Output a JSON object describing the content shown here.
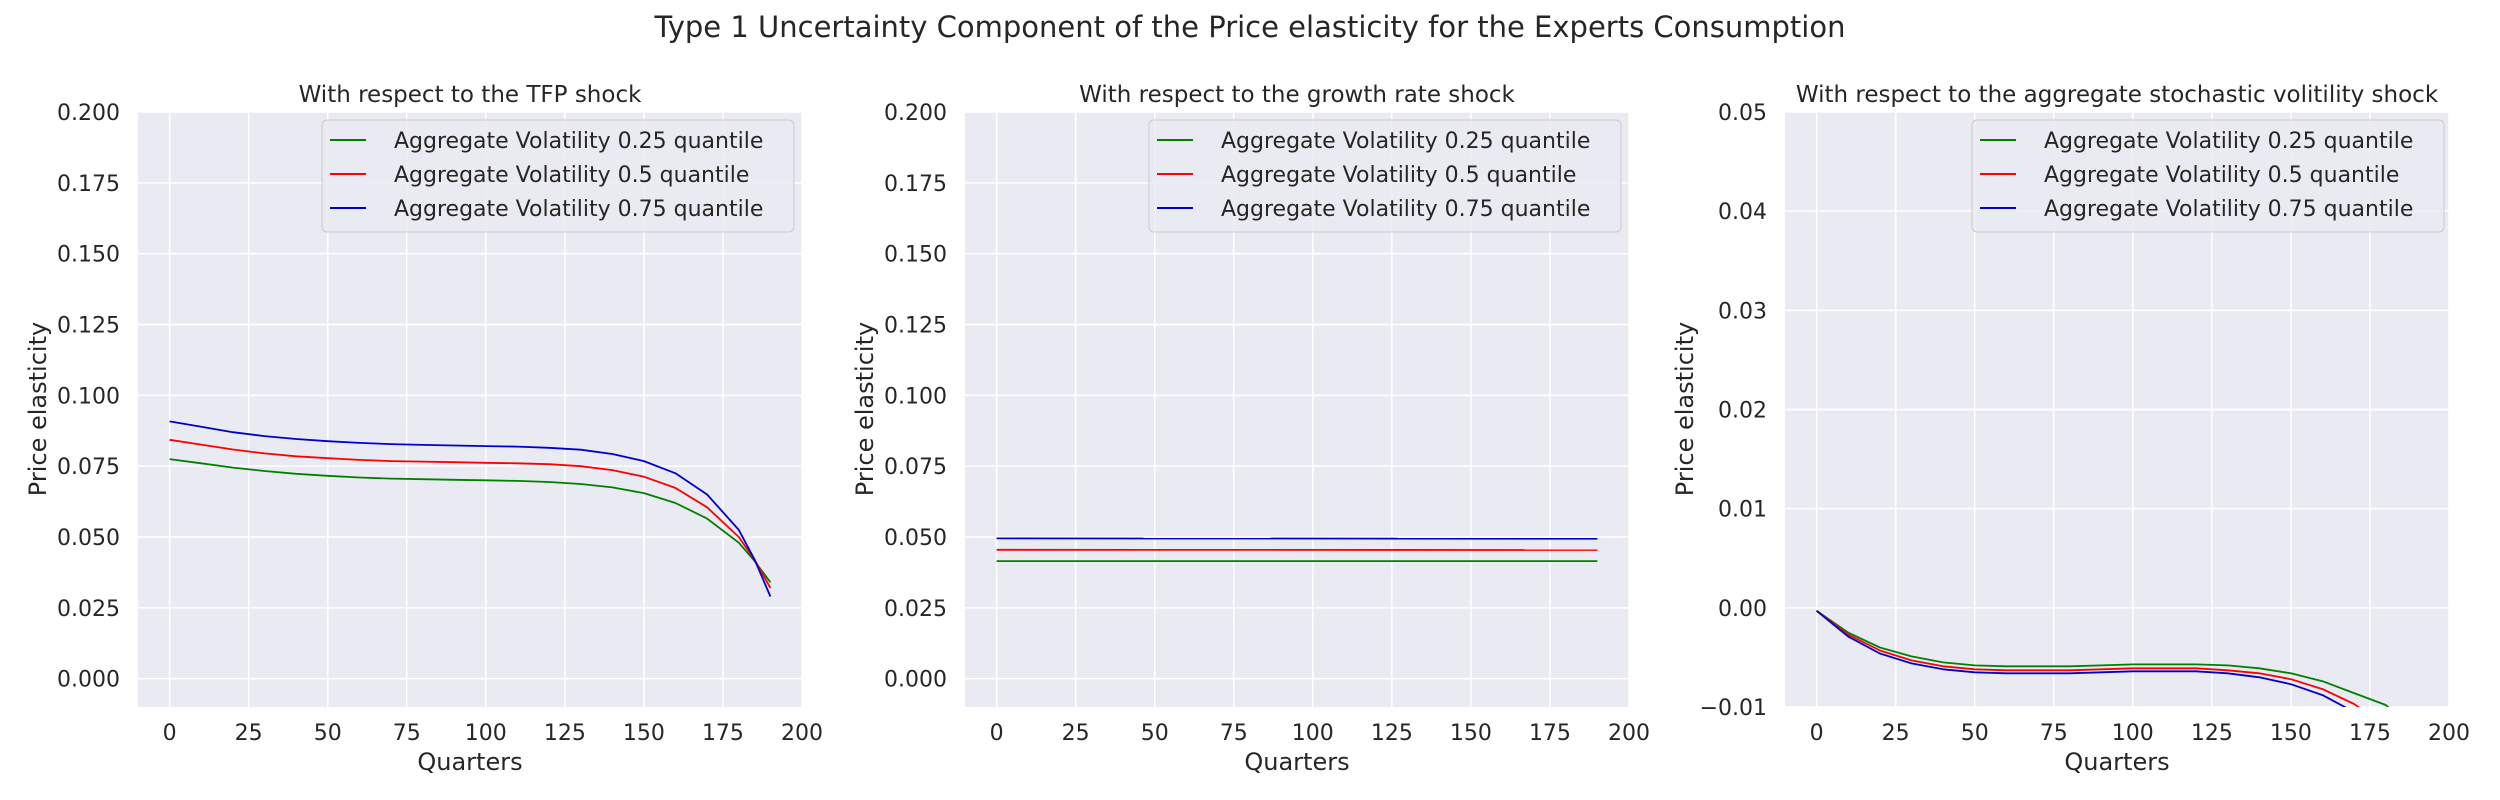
{
  "figure": {
    "title": "Type 1 Uncertainty Component of the Price elasticity for the Experts Consumption"
  },
  "chart_data": [
    {
      "type": "line",
      "title": "With respect to the TFP shock",
      "xlabel": "Quarters",
      "ylabel": "Price elasticity",
      "xlim": [
        -10,
        200
      ],
      "ylim": [
        -0.01,
        0.2
      ],
      "xticks": [
        0,
        25,
        50,
        75,
        100,
        125,
        150,
        175,
        200
      ],
      "xtick_labels": [
        "0",
        "25",
        "50",
        "75",
        "100",
        "125",
        "150",
        "175",
        "200"
      ],
      "yticks": [
        0,
        0.025,
        0.05,
        0.075,
        0.1,
        0.125,
        0.15,
        0.175,
        0.2
      ],
      "ytick_labels": [
        "0.000",
        "0.025",
        "0.050",
        "0.075",
        "0.100",
        "0.125",
        "0.150",
        "0.175",
        "0.200"
      ],
      "grid": true,
      "legend_position": "top-right",
      "x": [
        0,
        10,
        20,
        30,
        40,
        50,
        60,
        70,
        80,
        90,
        100,
        110,
        120,
        130,
        140,
        150,
        160,
        170,
        180,
        185,
        190
      ],
      "series": [
        {
          "name": "Aggregate Volatility 0.25 quantile",
          "color": "#008000",
          "values": [
            0.0775,
            0.076,
            0.0745,
            0.0733,
            0.0723,
            0.0716,
            0.071,
            0.0706,
            0.0704,
            0.0702,
            0.07,
            0.0698,
            0.0694,
            0.0687,
            0.0675,
            0.0655,
            0.062,
            0.0565,
            0.048,
            0.0415,
            0.034
          ]
        },
        {
          "name": "Aggregate Volatility 0.5 quantile",
          "color": "#ff0000",
          "values": [
            0.0843,
            0.0826,
            0.0809,
            0.0795,
            0.0785,
            0.0778,
            0.0772,
            0.0768,
            0.0766,
            0.0764,
            0.0762,
            0.076,
            0.0757,
            0.075,
            0.0736,
            0.0713,
            0.0673,
            0.0605,
            0.05,
            0.042,
            0.032
          ]
        },
        {
          "name": "Aggregate Volatility 0.75 quantile",
          "color": "#0000cc",
          "values": [
            0.0908,
            0.0889,
            0.087,
            0.0856,
            0.0846,
            0.0838,
            0.0832,
            0.0828,
            0.0825,
            0.0823,
            0.0821,
            0.0819,
            0.0815,
            0.0808,
            0.0793,
            0.0768,
            0.0725,
            0.065,
            0.0525,
            0.042,
            0.029
          ]
        }
      ]
    },
    {
      "type": "line",
      "title": "With respect to the growth rate shock",
      "xlabel": "Quarters",
      "ylabel": "Price elasticity",
      "xlim": [
        -10,
        200
      ],
      "ylim": [
        -0.01,
        0.2
      ],
      "xticks": [
        0,
        25,
        50,
        75,
        100,
        125,
        150,
        175,
        200
      ],
      "xtick_labels": [
        "0",
        "25",
        "50",
        "75",
        "100",
        "125",
        "150",
        "175",
        "200"
      ],
      "yticks": [
        0,
        0.025,
        0.05,
        0.075,
        0.1,
        0.125,
        0.15,
        0.175,
        0.2
      ],
      "ytick_labels": [
        "0.000",
        "0.025",
        "0.050",
        "0.075",
        "0.100",
        "0.125",
        "0.150",
        "0.175",
        "0.200"
      ],
      "grid": true,
      "legend_position": "top-right",
      "x": [
        0,
        190
      ],
      "series": [
        {
          "name": "Aggregate Volatility 0.25 quantile",
          "color": "#008000",
          "values": [
            0.0415,
            0.0415
          ]
        },
        {
          "name": "Aggregate Volatility 0.5 quantile",
          "color": "#ff0000",
          "values": [
            0.0455,
            0.0454
          ]
        },
        {
          "name": "Aggregate Volatility 0.75 quantile",
          "color": "#0000cc",
          "values": [
            0.0495,
            0.0494
          ]
        }
      ]
    },
    {
      "type": "line",
      "title": "With respect to the aggregate stochastic volitility shock",
      "xlabel": "Quarters",
      "ylabel": "Price elasticity",
      "xlim": [
        -10,
        200
      ],
      "ylim": [
        -0.01,
        0.05
      ],
      "xticks": [
        0,
        25,
        50,
        75,
        100,
        125,
        150,
        175,
        200
      ],
      "xtick_labels": [
        "0",
        "25",
        "50",
        "75",
        "100",
        "125",
        "150",
        "175",
        "200"
      ],
      "yticks": [
        -0.01,
        0,
        0.01,
        0.02,
        0.03,
        0.04,
        0.05
      ],
      "ytick_labels": [
        "−0.01",
        "0.00",
        "0.01",
        "0.02",
        "0.03",
        "0.04",
        "0.05"
      ],
      "grid": true,
      "legend_position": "top-right",
      "x": [
        0,
        10,
        20,
        30,
        40,
        50,
        60,
        70,
        80,
        90,
        100,
        110,
        120,
        130,
        140,
        150,
        160,
        170,
        180,
        190
      ],
      "series": [
        {
          "name": "Aggregate Volatility 0.25 quantile",
          "color": "#008000",
          "values": [
            -0.0003,
            -0.0025,
            -0.004,
            -0.0049,
            -0.0055,
            -0.0058,
            -0.0059,
            -0.0059,
            -0.0059,
            -0.0058,
            -0.0057,
            -0.0057,
            -0.0057,
            -0.0058,
            -0.0061,
            -0.0066,
            -0.0074,
            -0.0086,
            -0.0098,
            -0.0125
          ]
        },
        {
          "name": "Aggregate Volatility 0.5 quantile",
          "color": "#ff0000",
          "values": [
            -0.0003,
            -0.0027,
            -0.0043,
            -0.0053,
            -0.0059,
            -0.0062,
            -0.0063,
            -0.0063,
            -0.0063,
            -0.0062,
            -0.0061,
            -0.0061,
            -0.0061,
            -0.0063,
            -0.0066,
            -0.0072,
            -0.0082,
            -0.0097,
            -0.012,
            -0.015
          ]
        },
        {
          "name": "Aggregate Volatility 0.75 quantile",
          "color": "#0000cc",
          "values": [
            -0.0003,
            -0.0029,
            -0.0046,
            -0.0056,
            -0.0062,
            -0.0065,
            -0.0066,
            -0.0066,
            -0.0066,
            -0.0065,
            -0.0064,
            -0.0064,
            -0.0064,
            -0.0066,
            -0.007,
            -0.0077,
            -0.0088,
            -0.0105,
            -0.013,
            -0.016
          ]
        }
      ]
    }
  ]
}
